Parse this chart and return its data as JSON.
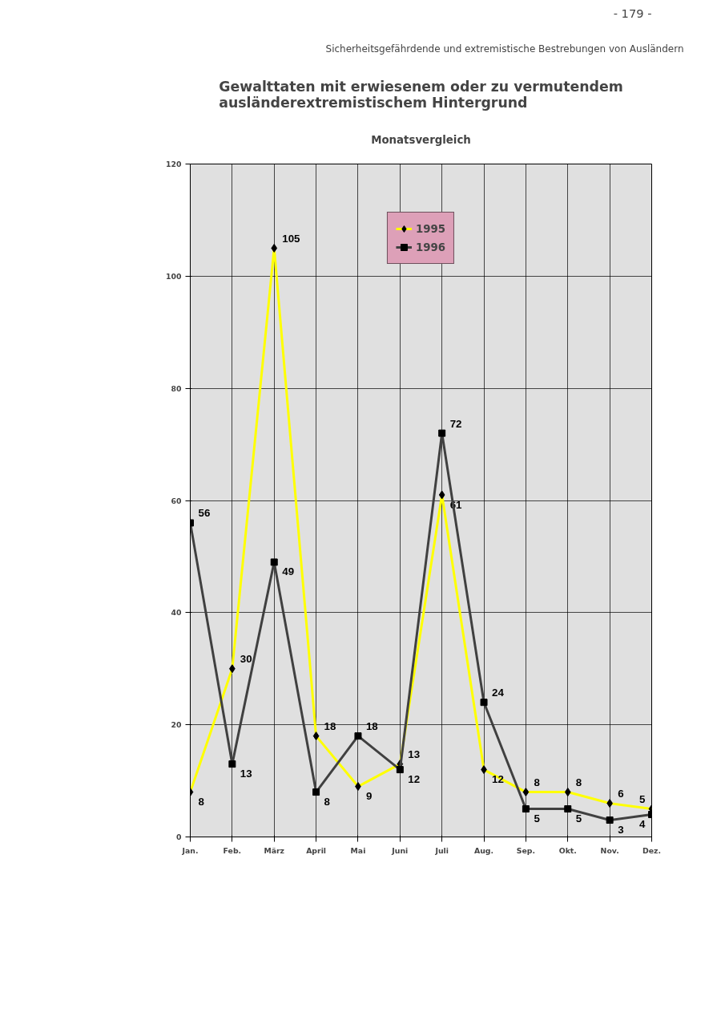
{
  "chart_data": {
    "type": "line",
    "title": "Gewalttaten mit erwiesenem oder zu vermutendem\nausländerextremistischem Hintergrund",
    "subtitle": "Monatsvergleich",
    "annotations": [
      "Sicherheitsgefährdende und extremistische Bestrebungen von Ausländern",
      "- 179 -"
    ],
    "categories": [
      "Jan.",
      "Feb.",
      "März",
      "April",
      "Mai",
      "Juni",
      "Juli",
      "Aug.",
      "Sep.",
      "Okt.",
      "Nov.",
      "Dez."
    ],
    "series": [
      {
        "name": "1995",
        "color": "#ffff00",
        "marker": "diamond",
        "values": [
          8,
          30,
          105,
          18,
          9,
          13,
          61,
          12,
          8,
          8,
          6,
          5
        ]
      },
      {
        "name": "1996",
        "color": "#404040",
        "marker": "square",
        "values": [
          56,
          13,
          49,
          8,
          18,
          12,
          72,
          24,
          5,
          5,
          3,
          4
        ]
      }
    ],
    "ylim": [
      0,
      120
    ],
    "yticks": [
      0,
      20,
      40,
      60,
      80,
      100,
      120
    ],
    "grid": true,
    "legend": "top",
    "data_labels": true
  }
}
